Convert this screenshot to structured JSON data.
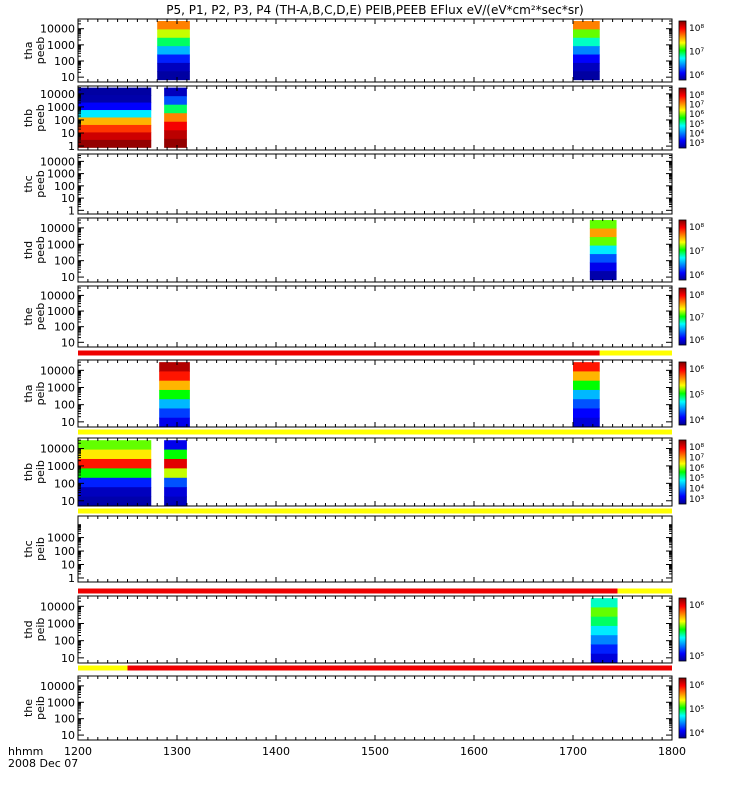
{
  "title": "P5, P1, P2, P3, P4 (TH-A,B,C,D,E) PEIB,PEEB EFlux eV/(eV*cm²*sec*sr)",
  "footer": {
    "label1": "hhmm",
    "label2": "2008 Dec 07"
  },
  "x_ticks": [
    "1200",
    "1300",
    "1400",
    "1500",
    "1600",
    "1700",
    "1800"
  ],
  "colors": {
    "red": "#ee0000",
    "yellow": "#ffff00",
    "black": "#000000"
  },
  "chart_data": [
    {
      "type": "heatmap",
      "panel": "tha-peeb",
      "ylabel": [
        "tha",
        "peeb"
      ],
      "y_ticks": [
        "10",
        "100",
        "1000",
        "10000"
      ],
      "yscale": "log",
      "colorbar": [
        "10⁸",
        "10⁷",
        "10⁶"
      ],
      "blocks": [
        {
          "x": [
            1280,
            1313
          ],
          "profile": [
            0.75,
            0.6,
            0.45,
            0.3,
            0.15,
            0.05,
            0.02
          ],
          "y_top": 30000,
          "y_bot": 7
        },
        {
          "x": [
            1700,
            1727
          ],
          "profile": [
            0.75,
            0.55,
            0.4,
            0.25,
            0.12,
            0.05,
            0.02
          ],
          "y_top": 30000,
          "y_bot": 7
        }
      ]
    },
    {
      "type": "heatmap",
      "panel": "thb-peeb",
      "ylabel": [
        "thb",
        "peeb"
      ],
      "y_ticks": [
        "1",
        "10",
        "100",
        "1000",
        "10000"
      ],
      "yscale": "log",
      "colorbar": [
        "10⁸",
        "10⁷",
        "10⁶",
        "10⁵",
        "10⁴",
        "10³"
      ],
      "blocks": [
        {
          "x": [
            1200,
            1274
          ],
          "profile": [
            0.02,
            0.03,
            0.12,
            0.35,
            0.7,
            0.82,
            0.92,
            0.98
          ],
          "y_top": 30000,
          "y_bot": 0.8
        },
        {
          "x": [
            1287,
            1310
          ],
          "profile": [
            0.05,
            0.2,
            0.45,
            0.75,
            0.88,
            0.94,
            0.98
          ],
          "y_top": 30000,
          "y_bot": 0.8
        }
      ]
    },
    {
      "type": "heatmap",
      "panel": "thc-peeb",
      "ylabel": [
        "thc",
        "peeb"
      ],
      "y_ticks": [
        "1",
        "10",
        "100",
        "1000",
        "10000"
      ],
      "yscale": "log",
      "colorbar": [],
      "blocks": []
    },
    {
      "type": "heatmap",
      "panel": "thd-peeb",
      "ylabel": [
        "thd",
        "peeb"
      ],
      "y_ticks": [
        "10",
        "100",
        "1000",
        "10000"
      ],
      "yscale": "log",
      "colorbar": [
        "10⁸",
        "10⁷",
        "10⁶"
      ],
      "blocks": [
        {
          "x": [
            1717,
            1744
          ],
          "profile": [
            0.55,
            0.72,
            0.55,
            0.35,
            0.2,
            0.1,
            0.03
          ],
          "y_top": 30000,
          "y_bot": 7
        }
      ]
    },
    {
      "type": "heatmap",
      "panel": "the-peeb",
      "ylabel": [
        "the",
        "peeb"
      ],
      "y_ticks": [
        "10",
        "100",
        "1000",
        "10000"
      ],
      "yscale": "log",
      "colorbar": [
        "10⁸",
        "10⁷",
        "10⁶"
      ],
      "blocks": []
    },
    {
      "type": "heatmap",
      "panel": "tha-peib",
      "ylabel": [
        "tha",
        "peib"
      ],
      "y_ticks": [
        "10",
        "100",
        "1000",
        "10000"
      ],
      "yscale": "log",
      "colorbar": [
        "10⁶",
        "10⁵",
        "10⁴"
      ],
      "status_bar": [
        {
          "x": [
            1200,
            1727
          ],
          "color": "red"
        },
        {
          "x": [
            1727,
            1800
          ],
          "color": "yellow"
        }
      ],
      "blocks": [
        {
          "x": [
            1282,
            1313
          ],
          "profile": [
            0.95,
            0.85,
            0.7,
            0.5,
            0.3,
            0.18,
            0.1
          ],
          "y_top": 30000,
          "y_bot": 5
        },
        {
          "x": [
            1700,
            1727
          ],
          "profile": [
            0.85,
            0.7,
            0.5,
            0.3,
            0.2,
            0.12,
            0.08
          ],
          "y_top": 30000,
          "y_bot": 5
        }
      ]
    },
    {
      "type": "heatmap",
      "panel": "thb-peib",
      "ylabel": [
        "thb",
        "peib"
      ],
      "y_ticks": [
        "10",
        "100",
        "1000",
        "10000"
      ],
      "yscale": "log",
      "colorbar": [
        "10⁸",
        "10⁷",
        "10⁶",
        "10⁵",
        "10⁴",
        "10³"
      ],
      "status_bar": [
        {
          "x": [
            1200,
            1800
          ],
          "color": "yellow"
        }
      ],
      "blocks": [
        {
          "x": [
            1200,
            1274
          ],
          "profile": [
            0.55,
            0.65,
            0.85,
            0.5,
            0.15,
            0.05,
            0.03
          ],
          "y_top": 30000,
          "y_bot": 3
        },
        {
          "x": [
            1287,
            1310
          ],
          "profile": [
            0.1,
            0.5,
            0.9,
            0.6,
            0.2,
            0.08,
            0.05
          ],
          "y_top": 30000,
          "y_bot": 3
        }
      ]
    },
    {
      "type": "heatmap",
      "panel": "thc-peib",
      "ylabel": [
        "thc",
        "peib"
      ],
      "y_ticks": [
        "1",
        "10",
        "100",
        "1000"
      ],
      "yscale": "log",
      "colorbar": [],
      "status_bar": [
        {
          "x": [
            1200,
            1800
          ],
          "color": "yellow"
        }
      ],
      "blocks": []
    },
    {
      "type": "heatmap",
      "panel": "thd-peib",
      "ylabel": [
        "thd",
        "peib"
      ],
      "y_ticks": [
        "10",
        "100",
        "1000",
        "10000"
      ],
      "yscale": "log",
      "colorbar": [
        "10⁶",
        "10⁵"
      ],
      "status_bar": [
        {
          "x": [
            1200,
            1745
          ],
          "color": "red"
        },
        {
          "x": [
            1745,
            1800
          ],
          "color": "yellow"
        }
      ],
      "blocks": [
        {
          "x": [
            1718,
            1745
          ],
          "profile": [
            0.4,
            0.55,
            0.45,
            0.35,
            0.25,
            0.15,
            0.08
          ],
          "y_top": 30000,
          "y_bot": 5
        }
      ]
    },
    {
      "type": "heatmap",
      "panel": "the-peib",
      "ylabel": [
        "the",
        "peib"
      ],
      "y_ticks": [
        "10",
        "100",
        "1000",
        "10000"
      ],
      "yscale": "log",
      "colorbar": [
        "10⁶",
        "10⁵",
        "10⁴"
      ],
      "status_bar": [
        {
          "x": [
            1200,
            1250
          ],
          "color": "yellow"
        },
        {
          "x": [
            1250,
            1800
          ],
          "color": "red"
        }
      ],
      "blocks": []
    }
  ]
}
